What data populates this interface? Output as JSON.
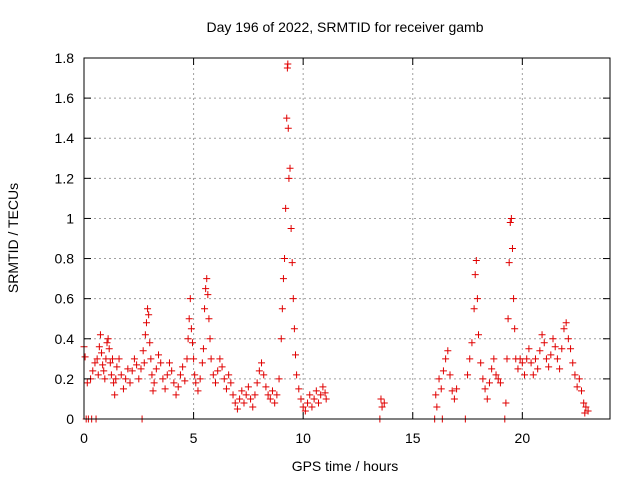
{
  "chart_data": {
    "type": "scatter",
    "title": "Day 196 of 2022, SRMTID for receiver gamb",
    "xlabel": "GPS time / hours",
    "ylabel": "SRMTID / TECUs",
    "xlim": [
      0,
      24
    ],
    "ylim": [
      0,
      1.8
    ],
    "xticks": [
      0,
      5,
      10,
      15,
      20
    ],
    "xtick_labels": [
      "0",
      "5",
      "10",
      "15",
      "20"
    ],
    "yticks": [
      0,
      0.2,
      0.4,
      0.6,
      0.8,
      1.0,
      1.2,
      1.4,
      1.6,
      1.8
    ],
    "ytick_labels": [
      "0",
      "0.2",
      "0.4",
      "0.6",
      "0.8",
      "1",
      "1.2",
      "1.4",
      "1.6",
      "1.8"
    ],
    "grid": true,
    "marker": "+",
    "color": "#e00000",
    "series": [
      {
        "name": "SRMTID",
        "points": [
          [
            0.0,
            0.36
          ],
          [
            0.05,
            0.31
          ],
          [
            0.1,
            0.0
          ],
          [
            0.15,
            0.18
          ],
          [
            0.2,
            0.0
          ],
          [
            0.3,
            0.2
          ],
          [
            0.35,
            0.0
          ],
          [
            0.4,
            0.24
          ],
          [
            0.5,
            0.28
          ],
          [
            0.55,
            0.0
          ],
          [
            0.6,
            0.3
          ],
          [
            0.65,
            0.22
          ],
          [
            0.7,
            0.36
          ],
          [
            0.75,
            0.42
          ],
          [
            0.8,
            0.33
          ],
          [
            0.85,
            0.27
          ],
          [
            0.9,
            0.24
          ],
          [
            0.95,
            0.2
          ],
          [
            1.0,
            0.3
          ],
          [
            1.05,
            0.38
          ],
          [
            1.1,
            0.4
          ],
          [
            1.15,
            0.35
          ],
          [
            1.2,
            0.28
          ],
          [
            1.25,
            0.22
          ],
          [
            1.3,
            0.3
          ],
          [
            1.35,
            0.18
          ],
          [
            1.4,
            0.12
          ],
          [
            1.45,
            0.2
          ],
          [
            1.5,
            0.26
          ],
          [
            1.6,
            0.3
          ],
          [
            1.7,
            0.22
          ],
          [
            1.8,
            0.15
          ],
          [
            1.9,
            0.2
          ],
          [
            2.0,
            0.25
          ],
          [
            2.1,
            0.18
          ],
          [
            2.2,
            0.24
          ],
          [
            2.3,
            0.3
          ],
          [
            2.4,
            0.27
          ],
          [
            2.5,
            0.2
          ],
          [
            2.6,
            0.25
          ],
          [
            2.65,
            0.0
          ],
          [
            2.7,
            0.34
          ],
          [
            2.75,
            0.28
          ],
          [
            2.8,
            0.42
          ],
          [
            2.85,
            0.48
          ],
          [
            2.9,
            0.55
          ],
          [
            2.95,
            0.52
          ],
          [
            3.0,
            0.38
          ],
          [
            3.05,
            0.3
          ],
          [
            3.1,
            0.22
          ],
          [
            3.15,
            0.14
          ],
          [
            3.2,
            0.18
          ],
          [
            3.3,
            0.25
          ],
          [
            3.4,
            0.32
          ],
          [
            3.5,
            0.28
          ],
          [
            3.6,
            0.2
          ],
          [
            3.7,
            0.15
          ],
          [
            3.8,
            0.22
          ],
          [
            3.9,
            0.28
          ],
          [
            4.0,
            0.24
          ],
          [
            4.1,
            0.18
          ],
          [
            4.2,
            0.12
          ],
          [
            4.3,
            0.16
          ],
          [
            4.4,
            0.22
          ],
          [
            4.5,
            0.26
          ],
          [
            4.6,
            0.19
          ],
          [
            4.7,
            0.3
          ],
          [
            4.75,
            0.4
          ],
          [
            4.8,
            0.5
          ],
          [
            4.85,
            0.6
          ],
          [
            4.9,
            0.45
          ],
          [
            4.95,
            0.38
          ],
          [
            5.0,
            0.3
          ],
          [
            5.05,
            0.22
          ],
          [
            5.1,
            0.18
          ],
          [
            5.2,
            0.14
          ],
          [
            5.3,
            0.2
          ],
          [
            5.4,
            0.28
          ],
          [
            5.45,
            0.35
          ],
          [
            5.5,
            0.55
          ],
          [
            5.55,
            0.65
          ],
          [
            5.6,
            0.7
          ],
          [
            5.65,
            0.62
          ],
          [
            5.7,
            0.5
          ],
          [
            5.75,
            0.4
          ],
          [
            5.8,
            0.3
          ],
          [
            5.9,
            0.22
          ],
          [
            6.0,
            0.18
          ],
          [
            6.1,
            0.24
          ],
          [
            6.2,
            0.3
          ],
          [
            6.3,
            0.26
          ],
          [
            6.4,
            0.2
          ],
          [
            6.5,
            0.15
          ],
          [
            6.6,
            0.22
          ],
          [
            6.7,
            0.18
          ],
          [
            6.8,
            0.12
          ],
          [
            6.9,
            0.08
          ],
          [
            7.0,
            0.05
          ],
          [
            7.1,
            0.1
          ],
          [
            7.2,
            0.14
          ],
          [
            7.3,
            0.08
          ],
          [
            7.4,
            0.12
          ],
          [
            7.5,
            0.16
          ],
          [
            7.6,
            0.1
          ],
          [
            7.7,
            0.06
          ],
          [
            7.8,
            0.12
          ],
          [
            7.9,
            0.18
          ],
          [
            8.0,
            0.24
          ],
          [
            8.1,
            0.28
          ],
          [
            8.2,
            0.22
          ],
          [
            8.3,
            0.16
          ],
          [
            8.4,
            0.12
          ],
          [
            8.5,
            0.1
          ],
          [
            8.6,
            0.14
          ],
          [
            8.7,
            0.08
          ],
          [
            8.8,
            0.12
          ],
          [
            8.9,
            0.2
          ],
          [
            9.0,
            0.4
          ],
          [
            9.05,
            0.55
          ],
          [
            9.1,
            0.7
          ],
          [
            9.15,
            0.8
          ],
          [
            9.2,
            1.05
          ],
          [
            9.25,
            1.5
          ],
          [
            9.28,
            1.75
          ],
          [
            9.3,
            1.77
          ],
          [
            9.32,
            1.45
          ],
          [
            9.35,
            1.2
          ],
          [
            9.4,
            1.25
          ],
          [
            9.45,
            0.95
          ],
          [
            9.5,
            0.78
          ],
          [
            9.55,
            0.6
          ],
          [
            9.6,
            0.45
          ],
          [
            9.65,
            0.32
          ],
          [
            9.7,
            0.22
          ],
          [
            9.8,
            0.15
          ],
          [
            9.9,
            0.1
          ],
          [
            10.0,
            0.06
          ],
          [
            10.1,
            0.04
          ],
          [
            10.2,
            0.08
          ],
          [
            10.3,
            0.12
          ],
          [
            10.4,
            0.06
          ],
          [
            10.5,
            0.1
          ],
          [
            10.6,
            0.14
          ],
          [
            10.7,
            0.08
          ],
          [
            10.8,
            0.12
          ],
          [
            10.9,
            0.16
          ],
          [
            11.0,
            0.13
          ],
          [
            11.05,
            0.1
          ],
          [
            13.5,
            0.0
          ],
          [
            13.55,
            0.1
          ],
          [
            13.6,
            0.06
          ],
          [
            13.7,
            0.08
          ],
          [
            16.0,
            0.0
          ],
          [
            16.05,
            0.12
          ],
          [
            16.1,
            0.06
          ],
          [
            16.2,
            0.2
          ],
          [
            16.3,
            0.15
          ],
          [
            16.35,
            0.0
          ],
          [
            16.4,
            0.24
          ],
          [
            16.5,
            0.3
          ],
          [
            16.6,
            0.34
          ],
          [
            16.7,
            0.22
          ],
          [
            16.8,
            0.14
          ],
          [
            16.9,
            0.1
          ],
          [
            17.0,
            0.15
          ],
          [
            17.4,
            0.0
          ],
          [
            17.5,
            0.22
          ],
          [
            17.6,
            0.3
          ],
          [
            17.7,
            0.38
          ],
          [
            17.8,
            0.55
          ],
          [
            17.85,
            0.72
          ],
          [
            17.9,
            0.79
          ],
          [
            17.95,
            0.6
          ],
          [
            18.0,
            0.42
          ],
          [
            18.1,
            0.28
          ],
          [
            18.2,
            0.2
          ],
          [
            18.3,
            0.15
          ],
          [
            18.4,
            0.1
          ],
          [
            18.5,
            0.18
          ],
          [
            18.6,
            0.25
          ],
          [
            18.7,
            0.3
          ],
          [
            18.8,
            0.22
          ],
          [
            18.9,
            0.2
          ],
          [
            19.0,
            0.18
          ],
          [
            19.2,
            0.0
          ],
          [
            19.25,
            0.08
          ],
          [
            19.3,
            0.3
          ],
          [
            19.35,
            0.5
          ],
          [
            19.4,
            0.78
          ],
          [
            19.45,
            0.98
          ],
          [
            19.5,
            1.0
          ],
          [
            19.55,
            0.85
          ],
          [
            19.6,
            0.6
          ],
          [
            19.65,
            0.45
          ],
          [
            19.7,
            0.3
          ],
          [
            19.8,
            0.25
          ],
          [
            19.9,
            0.3
          ],
          [
            20.0,
            0.28
          ],
          [
            20.1,
            0.22
          ],
          [
            20.2,
            0.3
          ],
          [
            20.3,
            0.35
          ],
          [
            20.4,
            0.28
          ],
          [
            20.5,
            0.22
          ],
          [
            20.6,
            0.3
          ],
          [
            20.7,
            0.25
          ],
          [
            20.8,
            0.34
          ],
          [
            20.9,
            0.42
          ],
          [
            21.0,
            0.38
          ],
          [
            21.1,
            0.3
          ],
          [
            21.2,
            0.26
          ],
          [
            21.3,
            0.32
          ],
          [
            21.4,
            0.4
          ],
          [
            21.5,
            0.36
          ],
          [
            21.6,
            0.3
          ],
          [
            21.7,
            0.25
          ],
          [
            21.8,
            0.35
          ],
          [
            21.9,
            0.45
          ],
          [
            22.0,
            0.48
          ],
          [
            22.1,
            0.4
          ],
          [
            22.2,
            0.35
          ],
          [
            22.3,
            0.28
          ],
          [
            22.4,
            0.22
          ],
          [
            22.5,
            0.16
          ],
          [
            22.6,
            0.2
          ],
          [
            22.7,
            0.14
          ],
          [
            22.8,
            0.08
          ],
          [
            22.85,
            0.03
          ],
          [
            22.9,
            0.06
          ],
          [
            23.0,
            0.04
          ]
        ]
      }
    ]
  }
}
